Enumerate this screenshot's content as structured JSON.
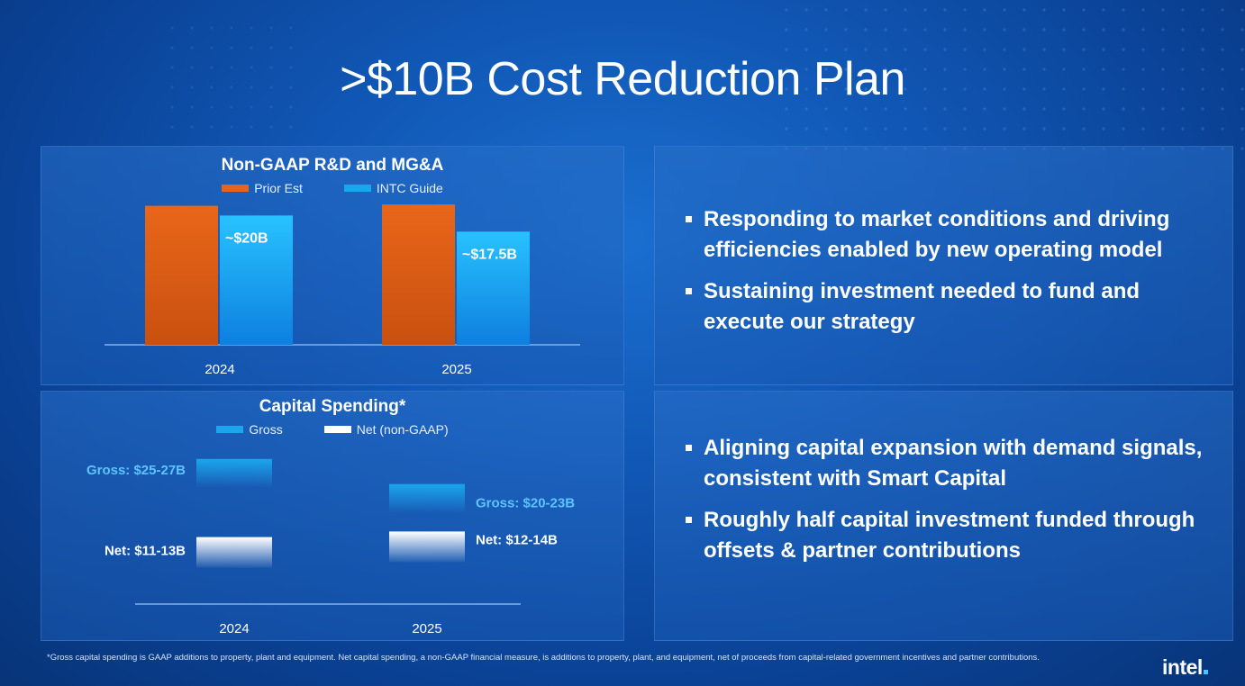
{
  "slide": {
    "title": ">$10B Cost Reduction Plan",
    "footnote": "*Gross capital spending is GAAP additions to property, plant and equipment. Net capital spending, a non-GAAP financial measure, is additions to property, plant, and equipment, net of proceeds from capital-related government incentives and partner contributions.",
    "logo": "intel",
    "colors": {
      "prior_est": "#e8641b",
      "intc_guide": "#1aa6ec",
      "net": "#ffffff",
      "gross_label": "#5ec4ff"
    }
  },
  "chart_data": [
    {
      "type": "bar",
      "title": "Non-GAAP R&D and MG&A",
      "categories": [
        "2024",
        "2025"
      ],
      "series": [
        {
          "name": "Prior Est",
          "values": [
            21.5,
            21.7
          ],
          "labels": [
            "",
            ""
          ]
        },
        {
          "name": "INTC Guide",
          "values": [
            20,
            17.5
          ],
          "labels": [
            "~$20B",
            "~$17.5B"
          ]
        }
      ],
      "ylim": [
        0,
        22
      ],
      "grid": false,
      "legend": "top-center"
    },
    {
      "type": "bar",
      "title": "Capital Spending*",
      "categories": [
        "2024",
        "2025"
      ],
      "series": [
        {
          "name": "Gross",
          "values": [
            26,
            21.5
          ],
          "labels": [
            "Gross: $25-27B",
            "Gross: $20-23B"
          ]
        },
        {
          "name": "Net (non-GAAP)",
          "values": [
            12,
            13
          ],
          "labels": [
            "Net: $11-13B",
            "Net: $12-14B"
          ]
        }
      ],
      "ylim": [
        0,
        30
      ],
      "grid": false,
      "legend": "top-center"
    }
  ],
  "bullets_top": [
    "Responding to market conditions and driving efficiencies enabled by new operating model",
    "Sustaining investment needed to fund and execute our strategy"
  ],
  "bullets_bottom": [
    "Aligning capital expansion with demand signals, consistent with Smart Capital",
    "Roughly half capital investment funded through offsets & partner contributions"
  ]
}
